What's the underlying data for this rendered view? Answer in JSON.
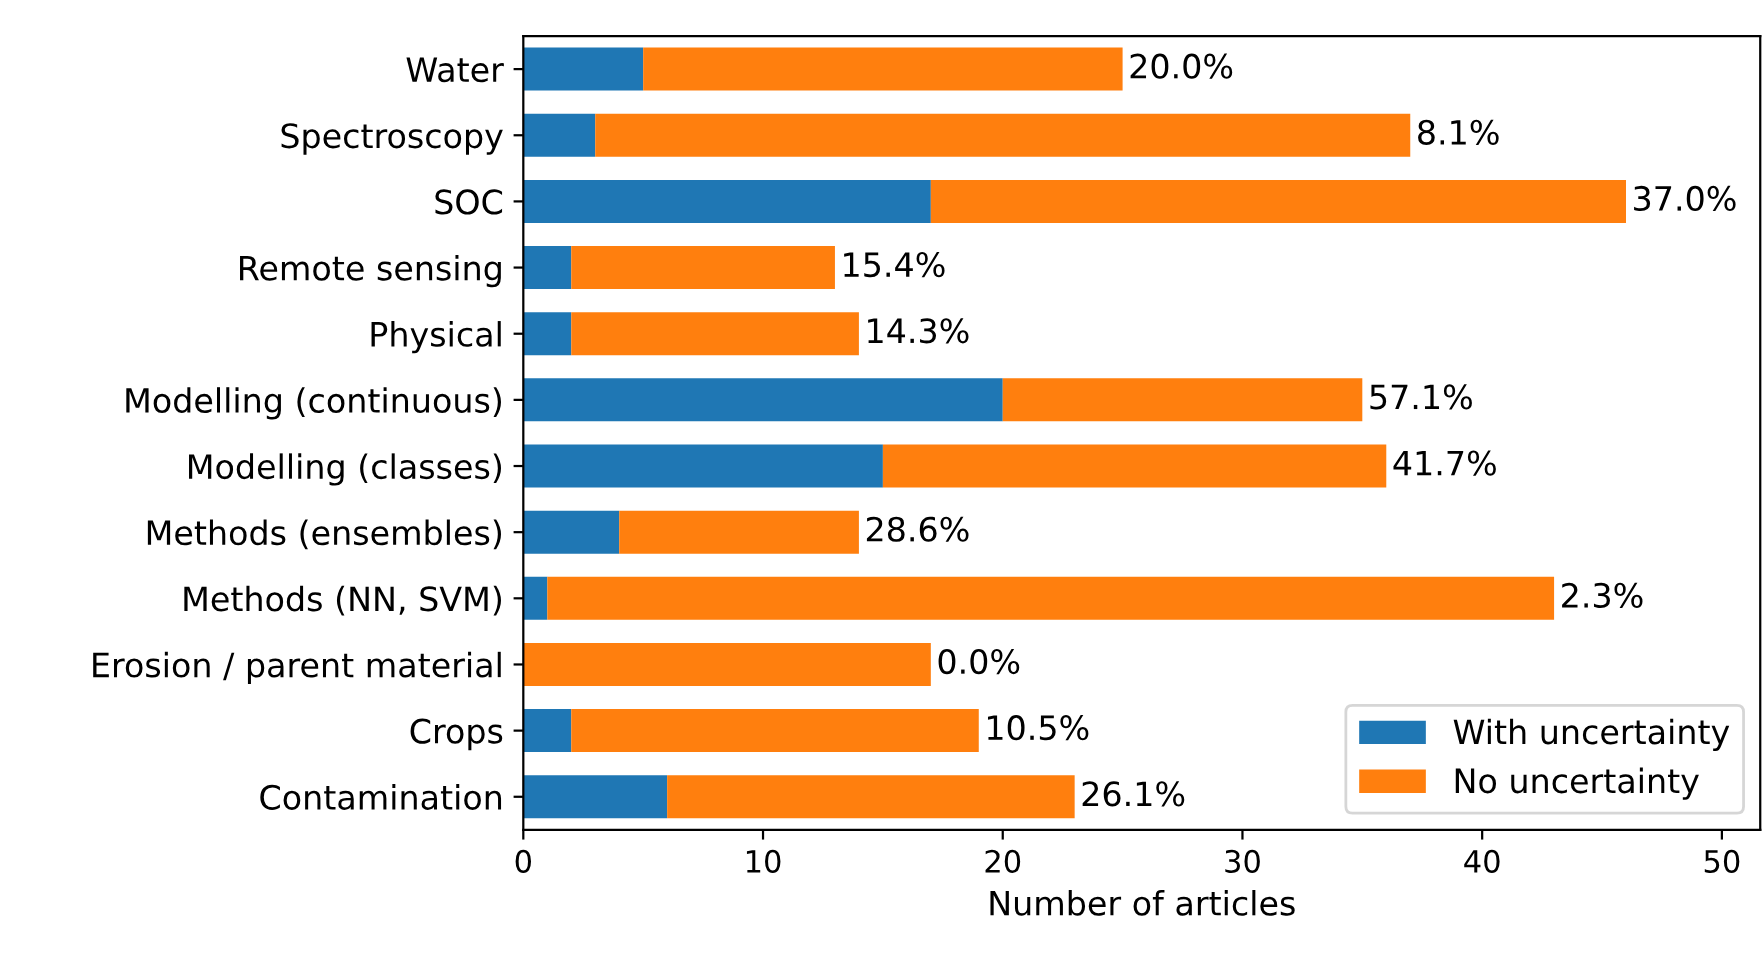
{
  "chart_data": {
    "type": "bar",
    "orientation": "horizontal",
    "stacked": true,
    "xlabel": "Number of articles",
    "categories": [
      "Water",
      "Spectroscopy",
      "SOC",
      "Remote sensing",
      "Physical",
      "Modelling (continuous)",
      "Modelling (classes)",
      "Methods (ensembles)",
      "Methods (NN, SVM)",
      "Erosion / parent material",
      "Crops",
      "Contamination"
    ],
    "series": [
      {
        "name": "With uncertainty",
        "color": "#1f77b4",
        "values": [
          5,
          3,
          17,
          2,
          2,
          20,
          15,
          4,
          1,
          0,
          2,
          6
        ]
      },
      {
        "name": "No uncertainty",
        "color": "#ff7f0e",
        "values": [
          20,
          34,
          29,
          11,
          12,
          15,
          21,
          10,
          42,
          17,
          17,
          17
        ]
      }
    ],
    "annotations": [
      {
        "text": "20.0%",
        "x": 25,
        "y": "Water"
      },
      {
        "text": "8.1%",
        "x": 37,
        "y": "Spectroscopy"
      },
      {
        "text": "37.0%",
        "x": 46,
        "y": "SOC"
      },
      {
        "text": "15.4%",
        "x": 13,
        "y": "Remote sensing"
      },
      {
        "text": "14.3%",
        "x": 14,
        "y": "Physical"
      },
      {
        "text": "57.1%",
        "x": 35,
        "y": "Modelling (continuous)"
      },
      {
        "text": "41.7%",
        "x": 36,
        "y": "Modelling (classes)"
      },
      {
        "text": "28.6%",
        "x": 14,
        "y": "Methods (ensembles)"
      },
      {
        "text": "2.3%",
        "x": 43,
        "y": "Methods (NN, SVM)"
      },
      {
        "text": "0.0%",
        "x": 17,
        "y": "Erosion / parent material"
      },
      {
        "text": "10.5%",
        "x": 19,
        "y": "Crops"
      },
      {
        "text": "26.1%",
        "x": 23,
        "y": "Contamination"
      }
    ],
    "xlim": [
      0,
      51.6
    ],
    "xticks": [
      0,
      10,
      20,
      30,
      40,
      50
    ],
    "grid": false,
    "legend": "bottom right"
  }
}
